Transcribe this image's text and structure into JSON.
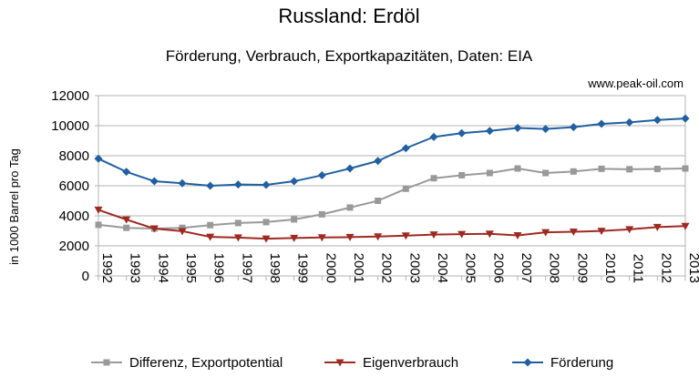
{
  "chart_data": {
    "type": "line",
    "title": "Russland: Erdöl",
    "subtitle": "Förderung, Verbrauch, Exportkapazitäten, Daten: EIA",
    "source": "www.peak-oil.com",
    "xlabel": "",
    "ylabel": "in 1000 Barrel pro Tag",
    "ylim": [
      0,
      12000
    ],
    "yticks": [
      "0",
      "2000",
      "4000",
      "6000",
      "8000",
      "10000",
      "12000"
    ],
    "categories": [
      "1992",
      "1993",
      "1994",
      "1995",
      "1996",
      "1997",
      "1998",
      "1999",
      "2000",
      "2001",
      "2002",
      "2003",
      "2004",
      "2005",
      "2006",
      "2007",
      "2008",
      "2009",
      "2010",
      "2011",
      "2012",
      "2013"
    ],
    "grid": "horizontal",
    "legend_position": "bottom",
    "series": [
      {
        "name": "Differenz, Exportpotential",
        "color": "#999999",
        "marker": "square",
        "values": [
          3400,
          3200,
          3150,
          3200,
          3380,
          3520,
          3580,
          3760,
          4100,
          4550,
          5000,
          5800,
          6500,
          6700,
          6850,
          7150,
          6850,
          6950,
          7130,
          7100,
          7120,
          7150
        ]
      },
      {
        "name": "Eigenverbrauch",
        "color": "#9e2a22",
        "marker": "triangle-down",
        "values": [
          4400,
          3750,
          3150,
          2980,
          2600,
          2550,
          2480,
          2520,
          2560,
          2580,
          2620,
          2680,
          2750,
          2780,
          2800,
          2700,
          2900,
          2940,
          2990,
          3100,
          3250,
          3320
        ]
      },
      {
        "name": "Förderung",
        "color": "#2060a0",
        "marker": "diamond",
        "values": [
          7800,
          6930,
          6300,
          6170,
          6000,
          6080,
          6060,
          6300,
          6700,
          7150,
          7650,
          8500,
          9250,
          9500,
          9650,
          9850,
          9780,
          9900,
          10120,
          10220,
          10380,
          10480
        ]
      }
    ]
  }
}
